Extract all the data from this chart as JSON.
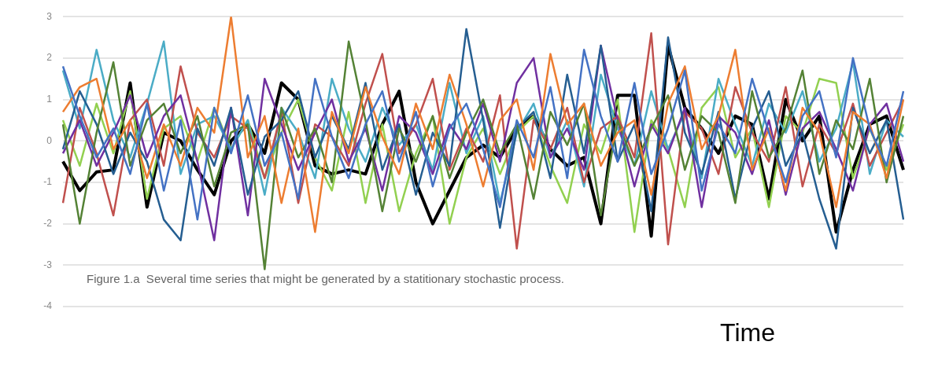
{
  "chart_data": {
    "type": "line",
    "xlabel": "Time",
    "annotations": [
      "Figure 1.a  Several time series that might be generated by a statitionary stochastic process."
    ],
    "categories": [
      null,
      null,
      null,
      null,
      null,
      null,
      null,
      null,
      null,
      null,
      null,
      null,
      null,
      null,
      null,
      null,
      null,
      null,
      null,
      null,
      null,
      null,
      null,
      null,
      null,
      null,
      null,
      null,
      null,
      null,
      null,
      null,
      null,
      null,
      null,
      null,
      null,
      null,
      null,
      null,
      null,
      null,
      null,
      null,
      null,
      null,
      null,
      null,
      null,
      null,
      null
    ],
    "ylim": [
      -4,
      3
    ],
    "yticks": [
      -4,
      -3,
      -2,
      -1,
      0,
      1,
      2,
      3
    ],
    "grid": "y",
    "legend": false,
    "marker": "none",
    "line_style": "solid",
    "series": [
      {
        "color": "#4472c4",
        "values": [
          1.8,
          0.6,
          -0.4,
          0.3,
          -0.8,
          0.9,
          -1.2,
          0.5,
          -1.9,
          0.8,
          -0.3,
          1.1,
          -0.6,
          0.2,
          -1.4,
          1.5,
          0.1,
          -0.9,
          0.4,
          1.2,
          -0.5,
          0.7,
          -1.1,
          0.3,
          0.9,
          -0.2,
          -1.6,
          0.5,
          -0.4,
          1.3,
          -0.9,
          2.2,
          0.6,
          -0.5,
          1.4,
          -0.8,
          0.3,
          1.7,
          -1.2,
          0.4,
          -0.3,
          1.5,
          0.2,
          -1.0,
          0.6,
          1.2,
          -0.4,
          2.0,
          0.3,
          -0.6,
          1.2
        ]
      },
      {
        "color": "#ed7d31",
        "values": [
          0.7,
          1.3,
          1.5,
          -0.2,
          0.5,
          -0.9,
          0.4,
          -0.6,
          0.8,
          0.2,
          3.0,
          -0.4,
          0.6,
          -1.5,
          0.3,
          -2.2,
          0.7,
          -0.3,
          1.3,
          0.1,
          -0.8,
          0.9,
          -0.2,
          1.6,
          0.4,
          -1.1,
          0.5,
          1.0,
          -0.7,
          2.1,
          0.4,
          0.9,
          -0.6,
          0.2,
          0.5,
          -1.3,
          0.9,
          1.8,
          -0.2,
          0.6,
          2.2,
          -0.7,
          0.3,
          -1.2,
          0.8,
          0.2,
          -1.6,
          0.7,
          0.4,
          -0.9,
          1.0
        ]
      },
      {
        "color": "#548235",
        "values": [
          0.4,
          -2.0,
          0.2,
          1.9,
          -0.6,
          0.5,
          0.9,
          -0.3,
          0.6,
          -1.1,
          0.2,
          0.4,
          -3.1,
          0.8,
          -0.4,
          0.3,
          -1.0,
          2.4,
          0.5,
          -1.7,
          0.3,
          -0.5,
          0.6,
          -0.9,
          0.2,
          1.0,
          -0.3,
          0.4,
          -1.4,
          0.7,
          -0.1,
          0.9,
          -1.8,
          0.5,
          -0.6,
          0.3,
          1.1,
          -0.7,
          0.6,
          0.2,
          -1.5,
          1.2,
          -0.4,
          0.3,
          1.7,
          -0.8,
          0.5,
          -0.2,
          1.5,
          -1.0,
          0.6
        ]
      },
      {
        "color": "#255e91",
        "values": [
          -0.2,
          1.2,
          0.4,
          -0.8,
          0.2,
          -0.5,
          -1.9,
          -2.4,
          0.3,
          -0.6,
          0.8,
          -1.3,
          0.1,
          0.5,
          1.2,
          -0.4,
          0.6,
          -0.2,
          1.4,
          -0.7,
          0.4,
          -1.3,
          0.2,
          -0.6,
          2.7,
          0.5,
          -2.1,
          0.3,
          0.7,
          -0.9,
          1.6,
          -0.3,
          2.3,
          -0.5,
          0.4,
          -1.7,
          2.5,
          0.2,
          -0.8,
          0.7,
          -1.4,
          0.3,
          1.2,
          -0.6,
          0.2,
          -1.4,
          -2.6,
          0.8,
          -0.3,
          0.5,
          -1.9
        ]
      },
      {
        "color": "#7030a0",
        "values": [
          -0.3,
          0.5,
          -0.6,
          0.2,
          1.1,
          -0.4,
          0.6,
          1.1,
          -0.5,
          -2.4,
          0.8,
          -1.8,
          1.5,
          0.4,
          -0.7,
          0.2,
          1.0,
          -0.5,
          0.3,
          -1.2,
          0.6,
          0.2,
          -0.8,
          0.4,
          -0.2,
          0.9,
          -0.5,
          1.4,
          2.0,
          -0.4,
          0.3,
          -0.7,
          2.3,
          0.5,
          -1.1,
          0.4,
          -0.3,
          0.8,
          -1.6,
          0.6,
          0.2,
          -0.8,
          0.5,
          -1.3,
          0.3,
          0.7,
          -0.2,
          -1.2,
          0.4,
          0.9,
          -0.5
        ]
      },
      {
        "color": "#c0504d",
        "values": [
          -1.5,
          0.8,
          -0.3,
          -1.8,
          0.5,
          1.0,
          -0.6,
          1.8,
          0.2,
          -0.4,
          0.6,
          0.3,
          -0.9,
          0.7,
          -1.5,
          0.4,
          0.1,
          -0.6,
          0.9,
          2.1,
          -0.3,
          0.4,
          1.5,
          -0.7,
          0.3,
          -0.5,
          1.1,
          -2.6,
          0.5,
          -0.2,
          0.8,
          -1.0,
          0.3,
          0.6,
          -0.4,
          2.6,
          -2.5,
          0.7,
          0.3,
          -0.8,
          1.3,
          0.2,
          -0.5,
          1.3,
          -1.1,
          0.4,
          -0.3,
          0.9,
          -0.6,
          0.2,
          1.0
        ]
      },
      {
        "color": "#4bacc6",
        "values": [
          1.7,
          0.3,
          2.2,
          0.5,
          -0.4,
          0.9,
          2.4,
          -0.8,
          0.4,
          0.6,
          -0.2,
          0.5,
          -1.3,
          0.8,
          0.2,
          -0.9,
          1.5,
          0.3,
          -0.5,
          0.8,
          -0.1,
          0.4,
          -0.7,
          1.4,
          -0.3,
          0.6,
          -1.5,
          0.2,
          0.9,
          -0.4,
          0.5,
          -1.1,
          1.6,
          0.3,
          -0.6,
          1.2,
          -0.2,
          0.7,
          -0.9,
          1.5,
          0.4,
          -0.6,
          0.9,
          0.2,
          1.2,
          -0.5,
          0.3,
          1.9,
          -0.8,
          0.5,
          0.1
        ]
      },
      {
        "color": "#92d050",
        "values": [
          0.5,
          -0.6,
          0.9,
          -0.3,
          1.2,
          -1.4,
          0.3,
          0.6,
          -0.5,
          0.8,
          -0.2,
          0.5,
          -0.9,
          0.2,
          1.0,
          -0.4,
          -1.2,
          0.7,
          -1.5,
          0.4,
          -1.7,
          -0.3,
          0.6,
          -2.0,
          -0.4,
          0.3,
          -0.8,
          0.2,
          0.6,
          -0.6,
          -1.5,
          0.4,
          -0.3,
          1.0,
          -2.2,
          0.5,
          -0.2,
          -1.6,
          0.8,
          1.3,
          -0.4,
          0.3,
          -1.6,
          0.6,
          0.2,
          1.5,
          1.4,
          -0.9,
          0.3,
          -0.7,
          0.4
        ]
      },
      {
        "color": "#000000",
        "values": [
          -0.5,
          -1.2,
          -0.75,
          -0.7,
          1.4,
          -1.6,
          0.2,
          0.0,
          -0.7,
          -1.3,
          0.0,
          0.4,
          -0.3,
          1.4,
          1.0,
          -0.6,
          -0.8,
          -0.7,
          -0.8,
          0.4,
          1.2,
          -1.0,
          -2.0,
          -1.2,
          -0.4,
          -0.1,
          -0.4,
          0.3,
          0.6,
          -0.2,
          -0.6,
          -0.4,
          -2.0,
          1.1,
          1.1,
          -2.3,
          2.3,
          0.8,
          0.3,
          -0.3,
          0.6,
          0.4,
          -1.4,
          1.0,
          0.0,
          0.6,
          -2.2,
          -0.7,
          0.4,
          0.6,
          -0.7
        ]
      }
    ]
  }
}
